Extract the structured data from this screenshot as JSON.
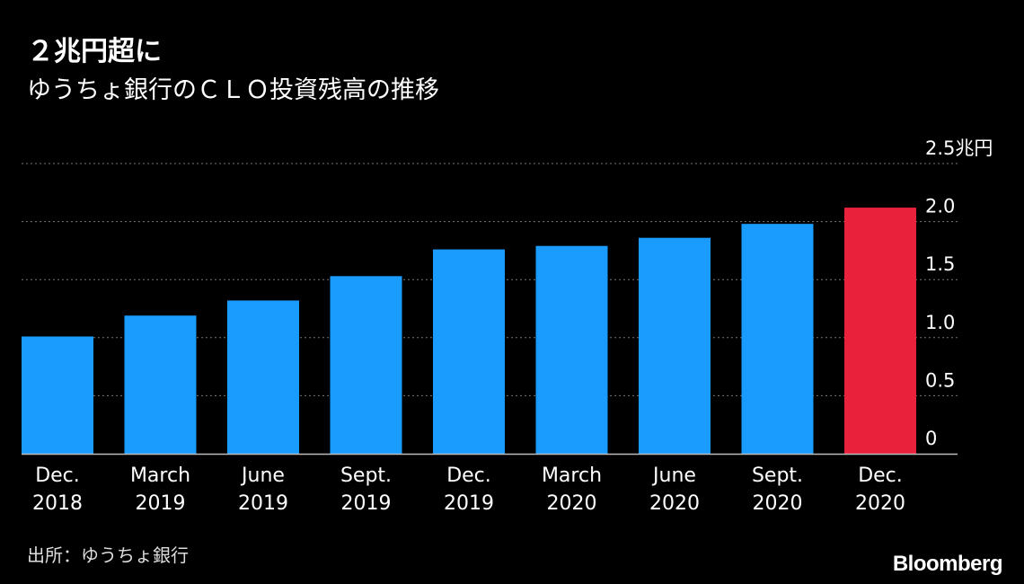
{
  "chart_data": {
    "type": "bar",
    "title": "２兆円超に",
    "subtitle": "ゆうちょ銀行のＣＬＯ投資残高の推移",
    "categories": [
      [
        "Dec.",
        "2018"
      ],
      [
        "March",
        "2019"
      ],
      [
        "June",
        "2019"
      ],
      [
        "Sept.",
        "2019"
      ],
      [
        "Dec.",
        "2019"
      ],
      [
        "March",
        "2020"
      ],
      [
        "June",
        "2020"
      ],
      [
        "Sept.",
        "2020"
      ],
      [
        "Dec.",
        "2020"
      ]
    ],
    "values": [
      1.01,
      1.19,
      1.32,
      1.53,
      1.76,
      1.79,
      1.86,
      1.98,
      2.12
    ],
    "ylim": [
      0,
      2.5
    ],
    "yticks": [
      {
        "value": 0,
        "label": "0"
      },
      {
        "value": 0.5,
        "label": "0.5"
      },
      {
        "value": 1.0,
        "label": "1.0"
      },
      {
        "value": 1.5,
        "label": "1.5"
      },
      {
        "value": 2.0,
        "label": "2.0"
      },
      {
        "value": 2.5,
        "label": "2.5兆円"
      }
    ],
    "grid": true,
    "y_axis_side": "right",
    "bar_color": "#1a9cff",
    "highlight_color": "#ea213a",
    "highlight_index": 8
  },
  "source": "出所：ゆうちょ銀行",
  "brand": "Bloomberg"
}
